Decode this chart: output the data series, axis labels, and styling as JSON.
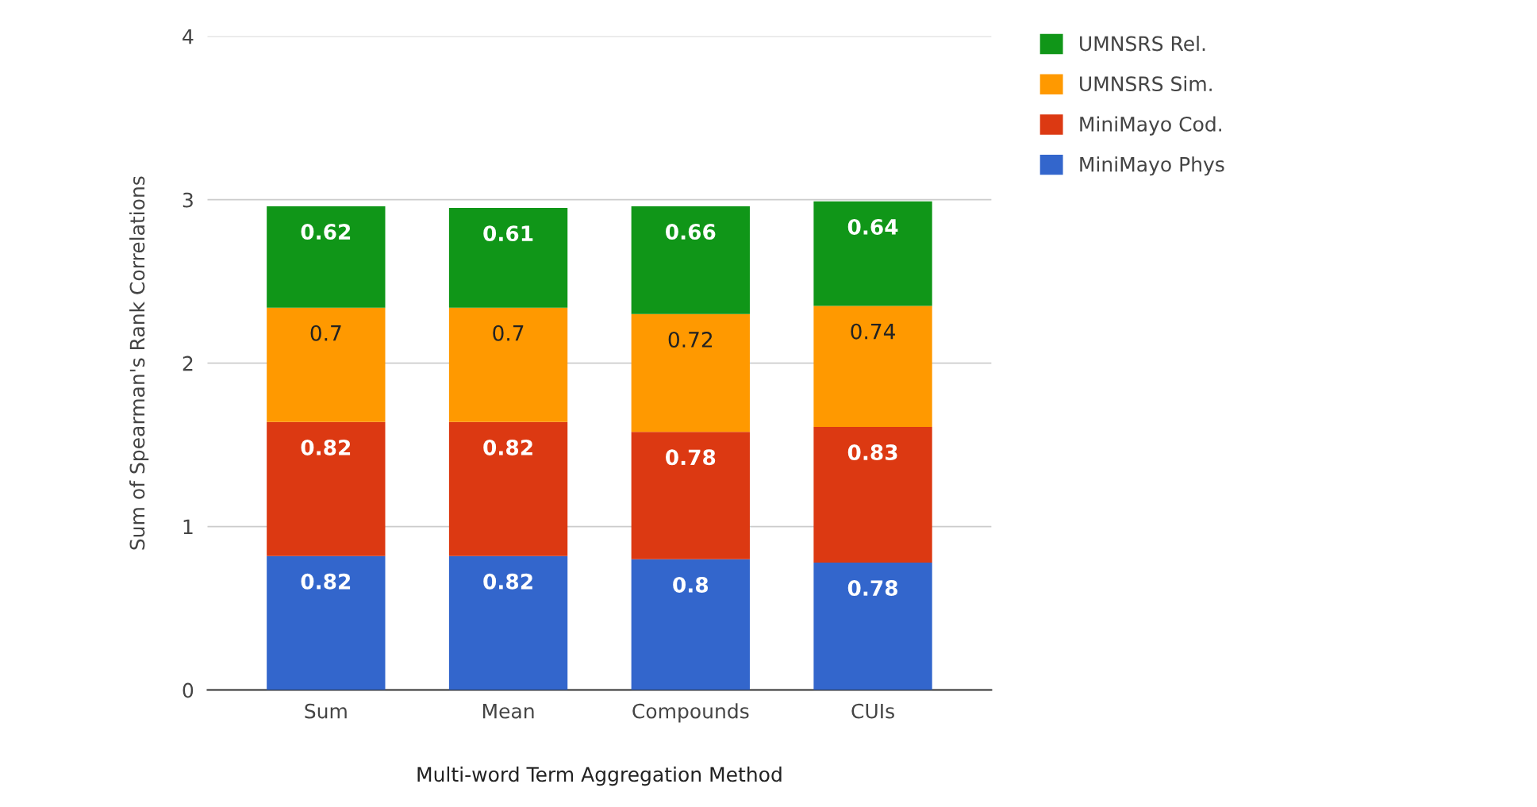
{
  "chart_data": {
    "type": "bar",
    "stacked": true,
    "xlabel": "Multi-word Term Aggregation Method",
    "ylabel": "Sum of Spearman's Rank Correlations",
    "categories": [
      "Sum",
      "Mean",
      "Compounds",
      "CUIs"
    ],
    "series": [
      {
        "name": "MiniMayo Phys",
        "color": "#3366cc",
        "values": [
          0.82,
          0.82,
          0.8,
          0.78
        ]
      },
      {
        "name": "MiniMayo Cod.",
        "color": "#dc3912",
        "values": [
          0.82,
          0.82,
          0.78,
          0.83
        ]
      },
      {
        "name": "UMNSRS Sim.",
        "color": "#ff9900",
        "values": [
          0.7,
          0.7,
          0.72,
          0.74
        ]
      },
      {
        "name": "UMNSRS Rel.",
        "color": "#109618",
        "values": [
          0.62,
          0.61,
          0.66,
          0.64
        ]
      }
    ],
    "ylim": [
      0,
      4
    ],
    "yticks": [
      0,
      1,
      2,
      3,
      4
    ],
    "grid": "y",
    "legend": "top right",
    "data_labels": true
  }
}
